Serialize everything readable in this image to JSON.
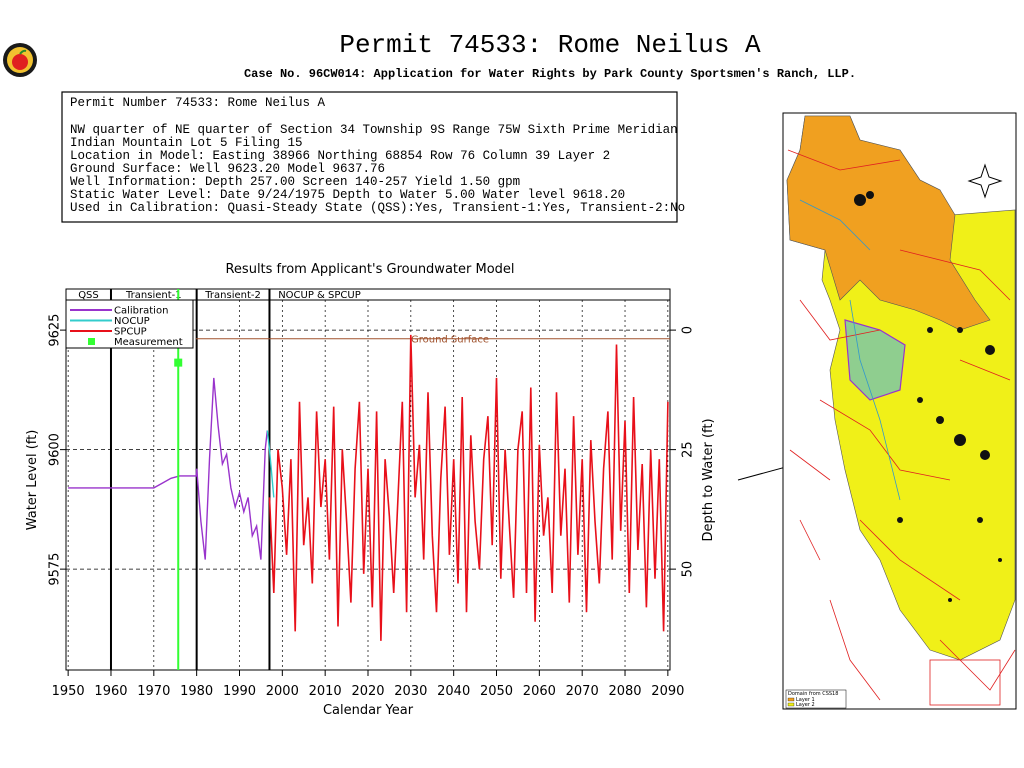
{
  "header": {
    "title": "Permit 74533:  Rome Neilus A",
    "subtitle": "Case No. 96CW014: Application for Water Rights by Park County Sportsmen's Ranch, LLP."
  },
  "info_box": {
    "lines": [
      "Permit Number 74533: Rome Neilus A",
      "NW quarter of NE quarter of Section 34 Township 9S Range 75W Sixth Prime Meridian",
      "Indian Mountain Lot 5 Filing 15",
      "Location in Model: Easting  38966 Northing  68854 Row   76 Column 39 Layer 2",
      "Ground Surface: Well   9623.20 Model   9637.76",
      "Well Information: Depth    257.00 Screen 140-257 Yield      1.50 gpm",
      "Static Water Level: Date   9/24/1975 Depth to Water      5.00 Water level   9618.20",
      "Used in Calibration: Quasi-Steady State (QSS):Yes, Transient-1:Yes, Transient-2:No"
    ]
  },
  "map": {
    "legend_title": "Domain from CSS18",
    "legend": [
      "Layer 1",
      "Layer 2"
    ]
  },
  "chart_data": {
    "type": "line",
    "title": "Results from Applicant's Groundwater Model",
    "x_label": "Calendar Year",
    "y_label": "Water Level (ft)",
    "y2_label": "Depth to Water (ft)",
    "xlim": [
      1949.5,
      2090.5
    ],
    "xticks": [
      1950,
      1960,
      1970,
      1980,
      1990,
      2000,
      2010,
      2020,
      2030,
      2040,
      2050,
      2060,
      2070,
      2080,
      2090
    ],
    "ylim": [
      9553.9,
      9633.6
    ],
    "yticks": [
      9575,
      9600,
      9625
    ],
    "y2lim": [
      71.1,
      -8.6
    ],
    "y2ticks": [
      0,
      25,
      50
    ],
    "grid": true,
    "periods": {
      "bounds": [
        1960,
        1980,
        1997
      ],
      "labels": [
        "QSS",
        "Transient-1",
        "Transient-2",
        "NOCUP & SPCUP"
      ]
    },
    "ground_surface": {
      "label": "Ground Surface",
      "value": 9623.2,
      "color": "#a0522d"
    },
    "measurement_line_color": "#33ff33",
    "series": [
      {
        "name": "Calibration",
        "color": "#9933cc",
        "x": [
          1950,
          1970,
          1972,
          1974,
          1976,
          1979.9,
          1980,
          1981,
          1982,
          1983,
          1984,
          1985,
          1986,
          1987,
          1988,
          1989,
          1990,
          1991,
          1992,
          1993,
          1994,
          1995,
          1996,
          1996.5
        ],
        "values": [
          9592,
          9592,
          9593,
          9594,
          9594.5,
          9594.5,
          9596,
          9585,
          9577,
          9598,
          9615,
          9605,
          9597,
          9599,
          9592,
          9588,
          9591,
          9587,
          9590,
          9582,
          9584,
          9577,
          9600,
          9604
        ]
      },
      {
        "name": "NOCUP",
        "color": "#33cccc",
        "x": [
          1996.5,
          1997,
          1998
        ],
        "values": [
          9604,
          9600,
          9590
        ]
      },
      {
        "name": "SPCUP",
        "color": "#e8101a",
        "x": [
          1997,
          1998,
          1999,
          2000,
          2001,
          2002,
          2003,
          2004,
          2005,
          2006,
          2007,
          2008,
          2009,
          2010,
          2011,
          2012,
          2013,
          2014,
          2015,
          2016,
          2017,
          2018,
          2019,
          2020,
          2021,
          2022,
          2023,
          2024,
          2025,
          2026,
          2027,
          2028,
          2029,
          2030,
          2031,
          2032,
          2033,
          2034,
          2035,
          2036,
          2037,
          2038,
          2039,
          2040,
          2041,
          2042,
          2043,
          2044,
          2045,
          2046,
          2047,
          2048,
          2049,
          2050,
          2051,
          2052,
          2053,
          2054,
          2055,
          2056,
          2057,
          2058,
          2059,
          2060,
          2061,
          2062,
          2063,
          2064,
          2065,
          2066,
          2067,
          2068,
          2069,
          2070,
          2071,
          2072,
          2073,
          2074,
          2075,
          2076,
          2077,
          2078,
          2079,
          2080,
          2081,
          2082,
          2083,
          2084,
          2085,
          2086,
          2087,
          2088,
          2089,
          2090
        ],
        "values": [
          9590,
          9570,
          9600,
          9592,
          9578,
          9598,
          9562,
          9610,
          9580,
          9590,
          9572,
          9608,
          9588,
          9598,
          9577,
          9609,
          9563,
          9600,
          9585,
          9568,
          9596,
          9610,
          9574,
          9596,
          9567,
          9608,
          9560,
          9598,
          9586,
          9570,
          9590,
          9610,
          9566,
          9624,
          9590,
          9601,
          9577,
          9612,
          9582,
          9566,
          9594,
          9609,
          9578,
          9598,
          9572,
          9611,
          9566,
          9603,
          9585,
          9575,
          9598,
          9607,
          9580,
          9615,
          9573,
          9600,
          9584,
          9569,
          9600,
          9608,
          9570,
          9613,
          9564,
          9601,
          9582,
          9590,
          9570,
          9612,
          9582,
          9596,
          9568,
          9607,
          9578,
          9598,
          9566,
          9602,
          9585,
          9572,
          9596,
          9608,
          9577,
          9622,
          9583,
          9606,
          9570,
          9611,
          9579,
          9597,
          9567,
          9600,
          9573,
          9598,
          9562,
          9610
        ]
      },
      {
        "name": "Measurement",
        "color": "#33ff33",
        "marker": true,
        "x": [
          1975.7
        ],
        "values": [
          9618.2
        ]
      }
    ]
  }
}
